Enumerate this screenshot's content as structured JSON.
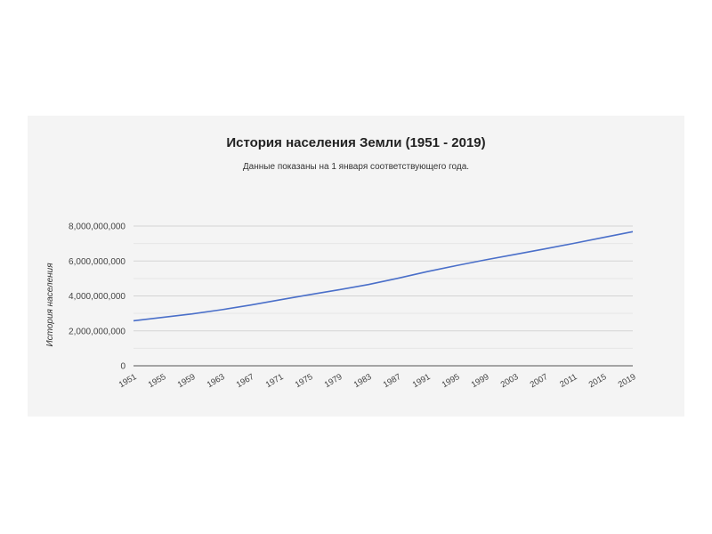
{
  "chart_data": {
    "type": "line",
    "title": "История населения Земли (1951 - 2019)",
    "subtitle": "Данные показаны на 1 января соответствующего года.",
    "xlabel": "",
    "ylabel": "История населения",
    "ylim": [
      0,
      8000000000
    ],
    "y_ticks": [
      {
        "value": 0,
        "label": "0"
      },
      {
        "value": 2000000000,
        "label": "2,000,000,000"
      },
      {
        "value": 4000000000,
        "label": "4,000,000,000"
      },
      {
        "value": 6000000000,
        "label": "6,000,000,000"
      },
      {
        "value": 8000000000,
        "label": "8,000,000,000"
      }
    ],
    "x_tick_labels": [
      "1951",
      "1955",
      "1959",
      "1963",
      "1967",
      "1971",
      "1975",
      "1979",
      "1983",
      "1987",
      "1991",
      "1995",
      "1999",
      "2003",
      "2007",
      "2011",
      "2015",
      "2019"
    ],
    "grid": true,
    "line_color": "#4a6fc9",
    "x": [
      1951,
      1955,
      1959,
      1963,
      1967,
      1971,
      1975,
      1979,
      1983,
      1987,
      1991,
      1995,
      1999,
      2003,
      2007,
      2011,
      2015,
      2019
    ],
    "series": [
      {
        "values": [
          2580000000,
          2770000000,
          2970000000,
          3210000000,
          3480000000,
          3780000000,
          4070000000,
          4350000000,
          4650000000,
          5010000000,
          5390000000,
          5740000000,
          6070000000,
          6380000000,
          6690000000,
          7010000000,
          7350000000,
          7680000000
        ]
      }
    ]
  }
}
